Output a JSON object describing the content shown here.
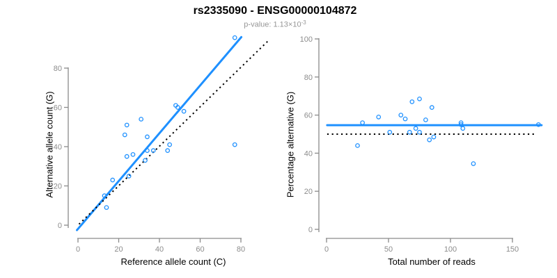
{
  "header": {
    "title": "rs2335090 - ENSG00000104872",
    "p_value_base": "p-value: 1.13×10",
    "p_value_exponent": "-3"
  },
  "style": {
    "accent_blue": "#1E90FF",
    "dotted_black": "#000000",
    "axis_color": "#8a8a8a",
    "tick_label_color": "#8c8c8c",
    "subtitle_color": "#969696"
  },
  "chart_data": [
    {
      "type": "scatter",
      "panel": "left",
      "xlabel": "Reference allele count (C)",
      "ylabel": "Alternative allele count (G)",
      "xlim": [
        0,
        80
      ],
      "ylim": [
        0,
        80
      ],
      "xticks": [
        0,
        20,
        40,
        60,
        80
      ],
      "yticks": [
        0,
        20,
        40,
        60,
        80
      ],
      "grid": false,
      "points": [
        [
          13,
          15
        ],
        [
          14,
          9
        ],
        [
          17,
          23
        ],
        [
          23,
          46
        ],
        [
          24,
          35
        ],
        [
          24,
          51
        ],
        [
          25,
          25
        ],
        [
          27,
          36
        ],
        [
          31,
          54
        ],
        [
          33,
          33
        ],
        [
          34,
          38
        ],
        [
          34,
          45
        ],
        [
          37,
          38
        ],
        [
          44,
          38
        ],
        [
          45,
          41
        ],
        [
          48,
          61
        ],
        [
          49,
          60
        ],
        [
          52,
          58
        ],
        [
          77,
          41
        ],
        [
          77,
          95.5
        ]
      ],
      "lines": [
        {
          "name": "regression",
          "style": "solid",
          "color": "#1E90FF",
          "from": [
            -0.5,
            -2.5
          ],
          "to": [
            80.2,
            95.8
          ]
        },
        {
          "name": "identity",
          "style": "dotted",
          "color": "#000000",
          "from": [
            0.5,
            0.5
          ],
          "to": [
            94,
            94.5
          ]
        }
      ]
    },
    {
      "type": "scatter",
      "panel": "right",
      "xlabel": "Total number of reads",
      "ylabel": "Percentage alternative (G)",
      "xlim": [
        0,
        150
      ],
      "ylim": [
        0,
        100
      ],
      "xticks": [
        0,
        50,
        100,
        150
      ],
      "yticks": [
        0,
        20,
        40,
        60,
        80,
        100
      ],
      "grid": false,
      "points": [
        [
          25,
          44
        ],
        [
          29,
          56
        ],
        [
          42,
          59
        ],
        [
          51,
          51
        ],
        [
          60,
          60
        ],
        [
          63.5,
          58
        ],
        [
          67,
          51
        ],
        [
          69,
          67
        ],
        [
          72,
          53
        ],
        [
          75,
          51
        ],
        [
          75,
          68.5
        ],
        [
          80,
          57.5
        ],
        [
          83,
          47
        ],
        [
          85,
          64
        ],
        [
          86.5,
          48.5
        ],
        [
          108.5,
          56
        ],
        [
          108.5,
          55
        ],
        [
          110,
          53
        ],
        [
          118.5,
          34.5
        ],
        [
          171,
          55
        ]
      ],
      "lines": [
        {
          "name": "mean-percentage",
          "style": "solid",
          "color": "#1E90FF",
          "from": [
            0.5,
            54.7
          ],
          "to": [
            173.5,
            54.7
          ]
        },
        {
          "name": "expected-50",
          "style": "dotted",
          "color": "#000000",
          "from": [
            0.5,
            50
          ],
          "to": [
            168,
            50
          ]
        }
      ]
    }
  ]
}
